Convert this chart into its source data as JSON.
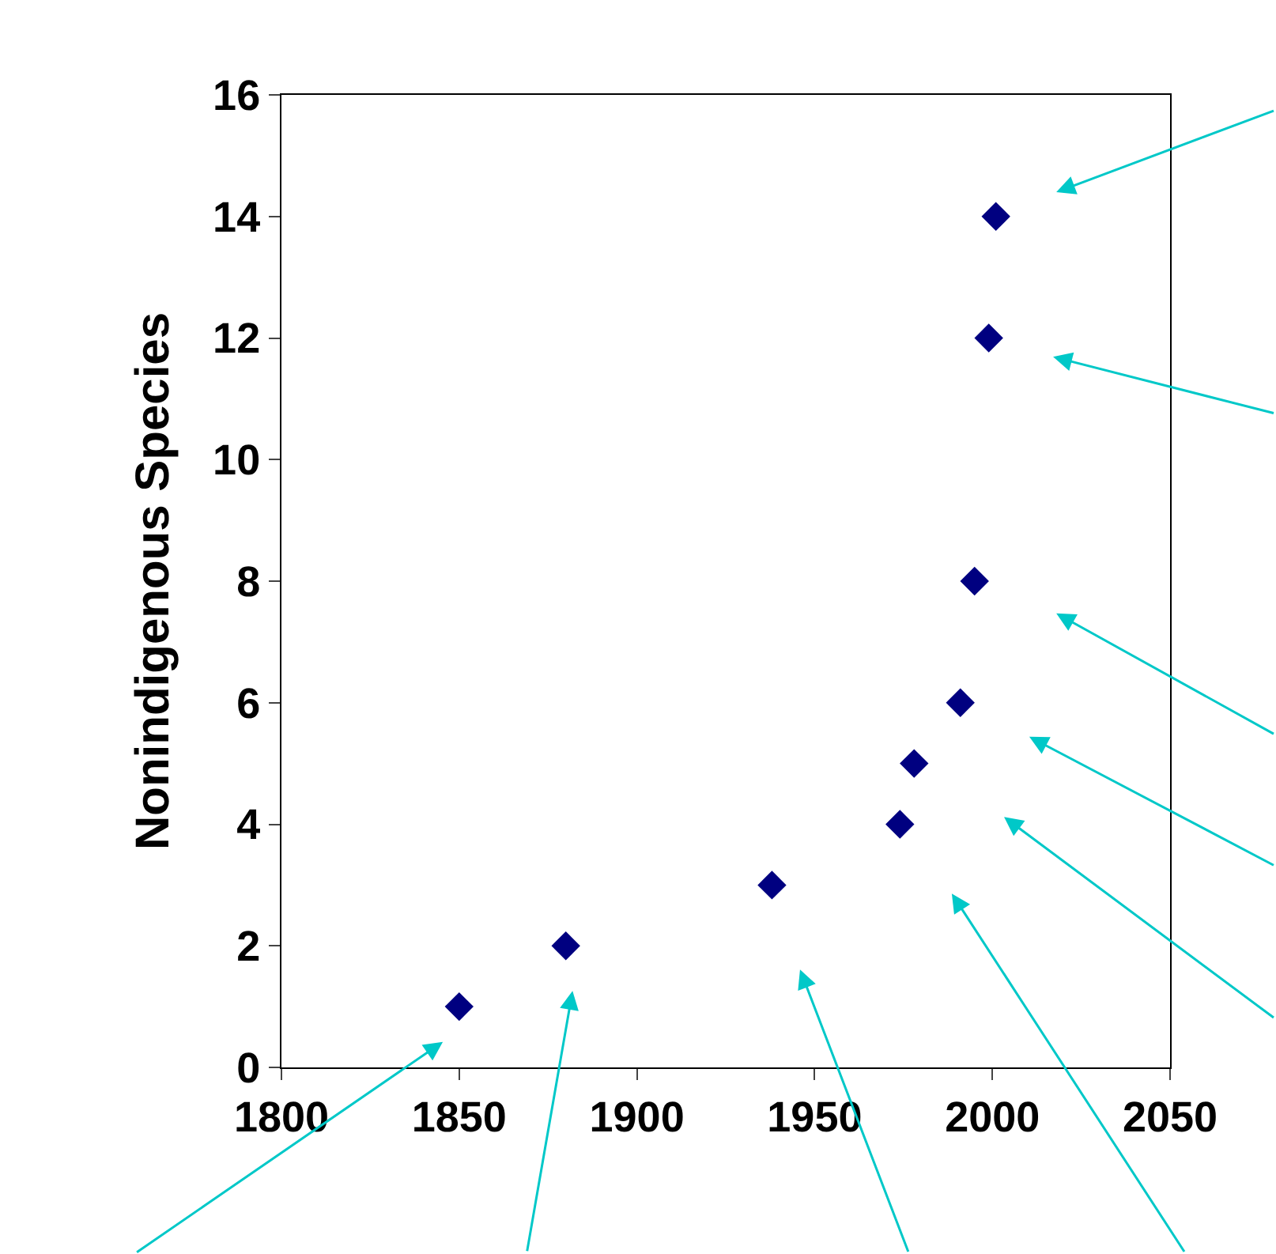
{
  "chart_data": {
    "type": "scatter",
    "ylabel": "Nonindigenous Species",
    "x": [
      1850,
      1880,
      1938,
      1974,
      1978,
      1991,
      1995,
      1999,
      2001
    ],
    "series": [
      {
        "color": "#000080",
        "values": [
          1,
          2,
          3,
          4,
          5,
          6,
          8,
          12,
          14
        ]
      }
    ],
    "xlim": [
      1800,
      2050
    ],
    "xticks": [
      1800,
      1850,
      1900,
      1950,
      2000,
      2050
    ],
    "ylim": [
      0,
      16
    ],
    "yticks": [
      0,
      2,
      4,
      6,
      8,
      10,
      12,
      14,
      16
    ],
    "marker": "diamond"
  }
}
